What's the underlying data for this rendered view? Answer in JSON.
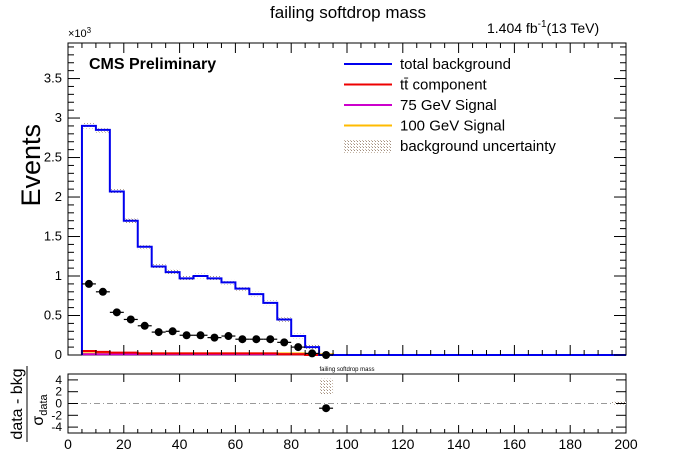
{
  "chart_data": [
    {
      "type": "histogram",
      "title": "failing softdrop mass",
      "lumi_label": "1.404 fb",
      "lumi_exp": "-1",
      "lumi_energy": "(13 TeV)",
      "cms_label": "CMS Preliminary",
      "ylabel": "Events",
      "y_multiplier": "×10",
      "y_multiplier_exp": "3",
      "xlim": [
        0,
        200
      ],
      "ylim": [
        0,
        3.95
      ],
      "x_ticks": [
        "0",
        "20",
        "40",
        "60",
        "80",
        "100",
        "120",
        "140",
        "160",
        "180",
        "200"
      ],
      "y_ticks": [
        "0",
        "0.5",
        "1",
        "1.5",
        "2",
        "2.5",
        "3",
        "3.5"
      ],
      "legend_position": "top-right",
      "legend": [
        {
          "label": "total background",
          "color": "#0000ee",
          "kind": "line"
        },
        {
          "label": "tt̄ component",
          "color": "#ee0000",
          "kind": "line"
        },
        {
          "label": "75 GeV Signal",
          "color": "#cc00cc",
          "kind": "line"
        },
        {
          "label": "100 GeV Signal",
          "color": "#ffbb00",
          "kind": "line"
        },
        {
          "label": "background uncertainty",
          "color": "#b8a89a",
          "kind": "box"
        }
      ],
      "bin_edges": [
        5,
        10,
        15,
        20,
        25,
        30,
        35,
        40,
        45,
        50,
        55,
        60,
        65,
        70,
        75,
        80,
        85,
        90,
        95,
        100,
        200
      ],
      "series": [
        {
          "name": "total background",
          "color": "#0000ee",
          "values": [
            2.9,
            2.85,
            2.07,
            1.7,
            1.37,
            1.12,
            1.05,
            0.97,
            1.0,
            0.97,
            0.92,
            0.84,
            0.77,
            0.66,
            0.45,
            0.24,
            0.1,
            0.0,
            0.0,
            0.0
          ]
        },
        {
          "name": "tt̄ component",
          "color": "#ee0000",
          "values": [
            0.05,
            0.04,
            0.03,
            0.03,
            0.02,
            0.02,
            0.02,
            0.02,
            0.02,
            0.02,
            0.02,
            0.02,
            0.02,
            0.02,
            0.01,
            0.01,
            0.0,
            0.0,
            0.0,
            0.0
          ]
        },
        {
          "name": "75 GeV Signal",
          "color": "#cc00cc",
          "values": [
            0.01,
            0.01,
            0.01,
            0.01,
            0.01,
            0.01,
            0.01,
            0.01,
            0.01,
            0.01,
            0.01,
            0.01,
            0.01,
            0.01,
            0.01,
            0.01,
            0.0,
            0.0,
            0.0,
            0.0
          ]
        },
        {
          "name": "100 GeV Signal",
          "color": "#ffbb00",
          "values": [
            0.02,
            0.02,
            0.02,
            0.02,
            0.02,
            0.02,
            0.02,
            0.02,
            0.02,
            0.02,
            0.02,
            0.02,
            0.02,
            0.02,
            0.02,
            0.02,
            0.01,
            0.01,
            0.0,
            0.0
          ]
        }
      ],
      "data_points": {
        "x": [
          7.5,
          12.5,
          17.5,
          22.5,
          27.5,
          32.5,
          37.5,
          42.5,
          47.5,
          52.5,
          57.5,
          62.5,
          67.5,
          72.5,
          77.5,
          82.5,
          87.5,
          92.5
        ],
        "y": [
          0.9,
          0.8,
          0.54,
          0.45,
          0.37,
          0.29,
          0.3,
          0.25,
          0.25,
          0.22,
          0.24,
          0.2,
          0.2,
          0.2,
          0.16,
          0.1,
          0.02,
          0.0
        ],
        "yerr": [
          0.03,
          0.03,
          0.02,
          0.02,
          0.02,
          0.02,
          0.02,
          0.02,
          0.02,
          0.02,
          0.02,
          0.02,
          0.02,
          0.02,
          0.02,
          0.02,
          0.01,
          0.01
        ]
      }
    },
    {
      "type": "scatter",
      "title": "failing softdrop mass",
      "ylabel": "data - bkg",
      "ylabel_denominator": "σ",
      "ylabel_denominator_sub": "data",
      "xlabel": "",
      "xlim": [
        0,
        200
      ],
      "ylim": [
        -5,
        5
      ],
      "x_ticks": [
        "0",
        "20",
        "40",
        "60",
        "80",
        "100",
        "120",
        "140",
        "160",
        "180",
        "200"
      ],
      "y_ticks": [
        "-4",
        "-2",
        "0",
        "2",
        "4"
      ],
      "reference_line": 0,
      "data_points": {
        "x": [
          92.5
        ],
        "y": [
          -0.8
        ],
        "yerr": [
          0.5
        ]
      },
      "uncertainty_bands": [
        {
          "x0": 90,
          "x1": 95,
          "y0": 1.5,
          "y1": 4.2
        },
        {
          "x0": 195,
          "x1": 200,
          "y0": -0.2,
          "y1": 0.3
        }
      ]
    }
  ]
}
